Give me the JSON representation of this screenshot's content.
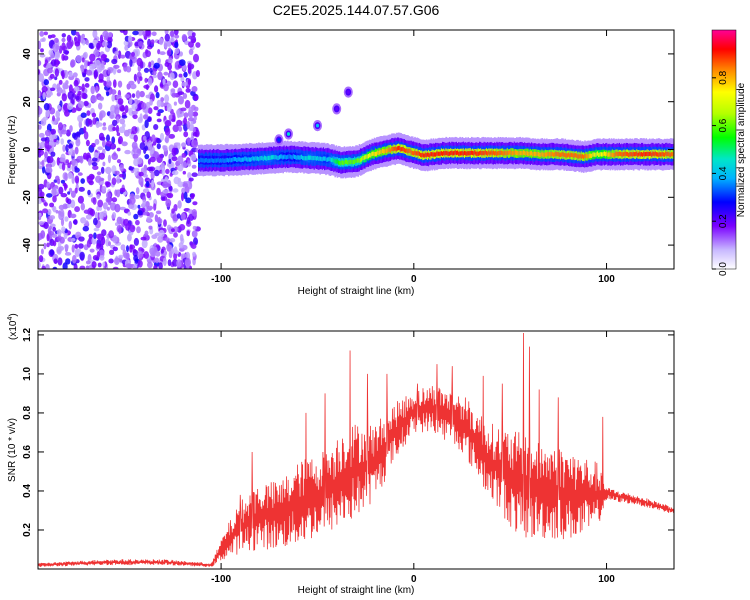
{
  "title": "C2E5.2025.144.07.57.G06",
  "chart_data": [
    {
      "type": "heatmap",
      "xlabel": "Height of straight line (km)",
      "ylabel": "Frequency (Hz)",
      "xlim": [
        -195,
        135
      ],
      "ylim": [
        -50,
        50
      ],
      "x_ticks": [
        -100,
        0,
        100
      ],
      "y_ticks": [
        -40,
        -20,
        0,
        20,
        40
      ],
      "noise_region_x": [
        -195,
        -112
      ],
      "ridge": [
        {
          "x": -112,
          "y": -4.5,
          "a": 0.35
        },
        {
          "x": -100,
          "y": -4.5,
          "a": 0.35
        },
        {
          "x": -85,
          "y": -4.0,
          "a": 0.4
        },
        {
          "x": -75,
          "y": -3.5,
          "a": 0.45
        },
        {
          "x": -65,
          "y": -3.0,
          "a": 0.35
        },
        {
          "x": -55,
          "y": -3.5,
          "a": 0.45
        },
        {
          "x": -45,
          "y": -4.0,
          "a": 0.4
        },
        {
          "x": -38,
          "y": -5.5,
          "a": 0.6
        },
        {
          "x": -30,
          "y": -5.0,
          "a": 0.6
        },
        {
          "x": -22,
          "y": -2.0,
          "a": 0.75
        },
        {
          "x": -15,
          "y": -0.5,
          "a": 0.8
        },
        {
          "x": -8,
          "y": 0.5,
          "a": 0.9
        },
        {
          "x": -2,
          "y": -1.0,
          "a": 0.85
        },
        {
          "x": 5,
          "y": -2.5,
          "a": 0.9
        },
        {
          "x": 15,
          "y": -1.5,
          "a": 0.9
        },
        {
          "x": 30,
          "y": -1.5,
          "a": 0.9
        },
        {
          "x": 45,
          "y": -1.5,
          "a": 0.85
        },
        {
          "x": 55,
          "y": -1.5,
          "a": 0.8
        },
        {
          "x": 65,
          "y": -2.0,
          "a": 0.8
        },
        {
          "x": 75,
          "y": -2.0,
          "a": 0.85
        },
        {
          "x": 82,
          "y": -2.5,
          "a": 0.85
        },
        {
          "x": 88,
          "y": -3.0,
          "a": 0.85
        },
        {
          "x": 95,
          "y": -2.0,
          "a": 0.7
        },
        {
          "x": 105,
          "y": -2.0,
          "a": 0.85
        },
        {
          "x": 120,
          "y": -2.0,
          "a": 0.9
        },
        {
          "x": 135,
          "y": -2.0,
          "a": 0.85
        }
      ],
      "side_features": [
        {
          "x": -65,
          "y": 6.5,
          "a": 0.45
        },
        {
          "x": -50,
          "y": 10.0,
          "a": 0.4
        },
        {
          "x": -40,
          "y": 17.0,
          "a": 0.2
        },
        {
          "x": -34,
          "y": 24.0,
          "a": 0.2
        },
        {
          "x": -70,
          "y": 4.0,
          "a": 0.3
        }
      ],
      "colorbar": {
        "label": "Normalized spectral amplitude",
        "range": [
          0,
          1
        ],
        "ticks": [
          0.0,
          0.2,
          0.4,
          0.6,
          0.8
        ]
      }
    },
    {
      "type": "line",
      "xlabel": "Height of straight line (km)",
      "ylabel": "SNR (10 * v/v)",
      "y_scale_label": "(x10",
      "y_scale_exp": "4",
      "y_scale_suffix": ")",
      "xlim": [
        -195,
        135
      ],
      "ylim": [
        0,
        1.22
      ],
      "x_ticks": [
        -100,
        0,
        100
      ],
      "y_ticks": [
        0.2,
        0.4,
        0.6,
        0.8,
        1.0,
        1.2
      ],
      "color": "#ee3333",
      "envelope": [
        {
          "x": -195,
          "lo": 0.01,
          "hi": 0.03
        },
        {
          "x": -160,
          "lo": 0.02,
          "hi": 0.05
        },
        {
          "x": -130,
          "lo": 0.02,
          "hi": 0.05
        },
        {
          "x": -105,
          "lo": 0.01,
          "hi": 0.03
        },
        {
          "x": -98,
          "lo": 0.05,
          "hi": 0.2
        },
        {
          "x": -90,
          "lo": 0.08,
          "hi": 0.35
        },
        {
          "x": -80,
          "lo": 0.1,
          "hi": 0.45
        },
        {
          "x": -70,
          "lo": 0.1,
          "hi": 0.45
        },
        {
          "x": -60,
          "lo": 0.12,
          "hi": 0.55
        },
        {
          "x": -45,
          "lo": 0.18,
          "hi": 0.62
        },
        {
          "x": -35,
          "lo": 0.22,
          "hi": 0.75
        },
        {
          "x": -20,
          "lo": 0.35,
          "hi": 0.75
        },
        {
          "x": -10,
          "lo": 0.55,
          "hi": 0.85
        },
        {
          "x": 0,
          "lo": 0.7,
          "hi": 0.92
        },
        {
          "x": 10,
          "lo": 0.7,
          "hi": 0.95
        },
        {
          "x": 25,
          "lo": 0.6,
          "hi": 0.9
        },
        {
          "x": 40,
          "lo": 0.35,
          "hi": 0.75
        },
        {
          "x": 55,
          "lo": 0.15,
          "hi": 0.7
        },
        {
          "x": 70,
          "lo": 0.15,
          "hi": 0.65
        },
        {
          "x": 85,
          "lo": 0.15,
          "hi": 0.6
        },
        {
          "x": 95,
          "lo": 0.2,
          "hi": 0.55
        },
        {
          "x": 100,
          "lo": 0.35,
          "hi": 0.42
        },
        {
          "x": 115,
          "lo": 0.33,
          "hi": 0.38
        },
        {
          "x": 135,
          "lo": 0.28,
          "hi": 0.32
        }
      ],
      "spikes": [
        {
          "x": -33,
          "y": 1.12
        },
        {
          "x": -24,
          "y": 1.0
        },
        {
          "x": -46,
          "y": 0.9
        },
        {
          "x": -56,
          "y": 0.8
        },
        {
          "x": -14,
          "y": 1.0
        },
        {
          "x": 2,
          "y": 0.95
        },
        {
          "x": 12,
          "y": 1.05
        },
        {
          "x": 20,
          "y": 1.04
        },
        {
          "x": 36,
          "y": 0.99
        },
        {
          "x": 46,
          "y": 0.95
        },
        {
          "x": 57,
          "y": 1.21
        },
        {
          "x": 60,
          "y": 1.14
        },
        {
          "x": 65,
          "y": 0.92
        },
        {
          "x": 75,
          "y": 0.88
        },
        {
          "x": 98,
          "y": 0.78
        },
        {
          "x": -84,
          "y": 0.6
        },
        {
          "x": -90,
          "y": 0.38
        }
      ]
    }
  ]
}
